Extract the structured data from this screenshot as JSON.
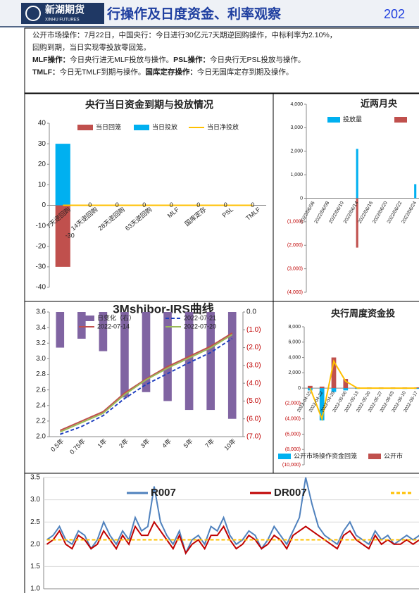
{
  "header": {
    "logo": "新湖期货",
    "logo_en": "XINHU FUTURES",
    "title": "行操作及日度资金、利率观察",
    "date": "202"
  },
  "notes": [
    [
      {
        "text": "公开市场操作：7月22日，中国央行：今日进行30亿元7天期逆回购操作，中标利率为2.10%，"
      }
    ],
    [
      {
        "text": "回购到期，当日实现零投放零回笼。"
      }
    ],
    [
      {
        "text": "MLF操作：",
        "bold": true
      },
      {
        "text": "今日央行进无MLF投放与操作。"
      },
      {
        "text": "PSL操作：",
        "bold": true
      },
      {
        "text": "今日央行无PSL投放与操作。"
      }
    ],
    [
      {
        "text": "TMLF：",
        "bold": true
      },
      {
        "text": "今日无TMLF到期与操作。"
      },
      {
        "text": "国库定存操作：",
        "bold": true
      },
      {
        "text": "今日无国库定存到期及操作。"
      }
    ]
  ],
  "chart_data": [
    {
      "type": "bar",
      "title": "央行当日资金到期与投放情况",
      "categories": [
        "7天逆回购",
        "14天逆回购",
        "28天逆回购",
        "63天逆回购",
        "MLF",
        "国库定存",
        "PSL",
        "TMLF"
      ],
      "series": [
        {
          "name": "当日回笼",
          "color": "#c0504d",
          "kind": "bar",
          "values": [
            -30,
            0,
            0,
            0,
            0,
            0,
            0,
            0
          ],
          "data_labels": true
        },
        {
          "name": "当日投放",
          "color": "#00b0f0",
          "kind": "bar",
          "values": [
            30,
            0,
            0,
            0,
            0,
            0,
            0,
            0
          ]
        },
        {
          "name": "当日净投放",
          "color": "#ffc000",
          "kind": "line",
          "values": [
            0,
            0,
            0,
            0,
            0,
            0,
            0,
            0
          ]
        }
      ],
      "ylim": [
        -40,
        40
      ],
      "yticks": [
        -40,
        -30,
        -20,
        -10,
        0,
        10,
        20,
        30,
        40
      ]
    },
    {
      "type": "bar",
      "title": "近两月央",
      "categories": [
        "2022/06/06",
        "2022/06/08",
        "2022/06/10",
        "2022/06/14",
        "2022/06/16",
        "2022/06/20",
        "2022/06/22",
        "2022/06/24"
      ],
      "series": [
        {
          "name": "投放量",
          "color": "#00b0f0",
          "kind": "bar",
          "values": [
            0,
            0,
            0,
            2100,
            0,
            0,
            0,
            600
          ]
        },
        {
          "color": "#c0504d",
          "kind": "bar",
          "values": [
            0,
            0,
            0,
            -2100,
            0,
            0,
            0,
            0
          ]
        }
      ],
      "ylim": [
        -4000,
        4000
      ],
      "yticks": [
        {
          "value": -4000,
          "label": "(4,000)"
        },
        {
          "value": -3000,
          "label": "(3,000)"
        },
        {
          "value": -2000,
          "label": "(2,000)"
        },
        {
          "value": -1000,
          "label": "(1,000)"
        },
        0,
        {
          "value": 1000,
          "label": "1,000"
        },
        {
          "value": 2000,
          "label": "2,000"
        },
        {
          "value": 3000,
          "label": "3,000"
        },
        {
          "value": 4000,
          "label": "4,000"
        }
      ],
      "negative_tick_color": "#c00000"
    },
    {
      "type": "bar",
      "title": "3Mshibor-IRS曲线",
      "categories": [
        "0.5年",
        "0.75年",
        "1年",
        "2年",
        "3年",
        "4年",
        "5年",
        "7年",
        "10年"
      ],
      "series": [
        {
          "name": "日变化（右）",
          "color": "#8064a2",
          "kind": "bar",
          "axis": "y2",
          "values": [
            -2.0,
            -1.5,
            -2.2,
            -4.8,
            -4.5,
            -5.0,
            -5.5,
            -5.5,
            -6.0
          ]
        },
        {
          "name": "2022-07-21",
          "color": "#1f3fbf",
          "kind": "line",
          "dash": true,
          "values": [
            2.03,
            2.13,
            2.27,
            2.49,
            2.67,
            2.81,
            2.95,
            3.08,
            3.26
          ]
        },
        {
          "name": "2022-07-14",
          "color": "#c0504d",
          "kind": "line",
          "values": [
            2.08,
            2.2,
            2.32,
            2.56,
            2.74,
            2.9,
            3.03,
            3.16,
            3.33
          ]
        },
        {
          "name": "2022-07-20",
          "color": "#9bbb59",
          "kind": "line",
          "values": [
            2.06,
            2.18,
            2.3,
            2.54,
            2.73,
            2.88,
            3.01,
            3.14,
            3.31
          ]
        }
      ],
      "ylim": [
        2.0,
        3.6
      ],
      "yticks": [
        {
          "value": 2.0,
          "label": "2.0"
        },
        2.2,
        2.4,
        2.6,
        2.8,
        {
          "value": 3.0,
          "label": "3.0"
        },
        3.2,
        3.4,
        3.6
      ],
      "y2lim": [
        -7,
        0
      ],
      "y2ticks": [
        {
          "value": -7,
          "label": "(7.0)"
        },
        {
          "value": -6,
          "label": "(6.0)"
        },
        {
          "value": -5,
          "label": "(5.0)"
        },
        {
          "value": -4,
          "label": "(4.0)"
        },
        {
          "value": -3,
          "label": "(3.0)"
        },
        {
          "value": -2,
          "label": "(2.0)"
        },
        {
          "value": -1,
          "label": "(1.0)"
        },
        {
          "value": 0,
          "label": "0.0"
        }
      ],
      "negative_tick_color": "#c00000"
    },
    {
      "type": "bar",
      "title": "央行周度资金投",
      "categories": [
        "2022-04-15",
        "2022-04-22",
        "2022-04-29",
        "2022-05-06",
        "2022-05-13",
        "2022-05-20",
        "2022-05-27",
        "2022-06-03",
        "2022-06-10",
        "2022-06-17"
      ],
      "series": [
        {
          "name": "公开市场操作资金回笼",
          "color": "#00b0f0",
          "kind": "bar",
          "values": [
            -300,
            -4200,
            -500,
            -300,
            -100,
            -100,
            -100,
            -100,
            -100,
            -100
          ]
        },
        {
          "name": "公开市",
          "color": "#c0504d",
          "kind": "bar",
          "values": [
            300,
            200,
            4000,
            1200,
            100,
            100,
            100,
            100,
            100,
            100
          ]
        },
        {
          "color": "#ffc000",
          "kind": "line",
          "values": [
            0,
            -4000,
            3500,
            900,
            0,
            0,
            0,
            0,
            0,
            0
          ]
        }
      ],
      "ylim": [
        -10000,
        8000
      ],
      "yticks": [
        {
          "value": -10000,
          "label": "(10,000)"
        },
        {
          "value": -8000,
          "label": "(8,000)"
        },
        {
          "value": -6000,
          "label": "(6,000)"
        },
        {
          "value": -4000,
          "label": "(4,000)"
        },
        {
          "value": -2000,
          "label": "(2,000)"
        },
        0,
        {
          "value": 2000,
          "label": "2,000"
        },
        {
          "value": 4000,
          "label": "4,000"
        },
        {
          "value": 6000,
          "label": "6,000"
        },
        {
          "value": 8000,
          "label": "8,000"
        }
      ],
      "negative_tick_color": "#c00000"
    },
    {
      "type": "line",
      "series": [
        {
          "name": "R007",
          "color": "#4f81bd",
          "kind": "line",
          "values": [
            2.1,
            2.2,
            2.4,
            2.1,
            2.0,
            2.3,
            2.2,
            1.9,
            2.1,
            2.5,
            2.2,
            2.0,
            2.3,
            2.1,
            2.6,
            2.3,
            2.4,
            3.3,
            2.5,
            2.2,
            2.0,
            2.3,
            1.8,
            2.1,
            2.2,
            2.0,
            2.4,
            2.3,
            2.6,
            2.2,
            2.0,
            2.1,
            2.3,
            2.2,
            1.9,
            2.1,
            2.4,
            2.2,
            2.0,
            2.3,
            2.6,
            3.5,
            2.9,
            2.4,
            2.2,
            2.1,
            2.0,
            2.3,
            2.5,
            2.2,
            2.1,
            2.0,
            2.3,
            2.1,
            2.2,
            2.0,
            2.1,
            2.2,
            2.1,
            2.2
          ]
        },
        {
          "name": "DR007",
          "color": "#c00000",
          "kind": "line",
          "values": [
            2.0,
            2.1,
            2.3,
            2.0,
            1.9,
            2.2,
            2.1,
            1.9,
            2.0,
            2.3,
            2.1,
            1.9,
            2.2,
            2.0,
            2.4,
            2.2,
            2.2,
            2.5,
            2.3,
            2.1,
            1.9,
            2.2,
            1.8,
            2.0,
            2.1,
            1.9,
            2.2,
            2.2,
            2.4,
            2.1,
            1.9,
            2.0,
            2.2,
            2.1,
            1.9,
            2.0,
            2.2,
            2.1,
            1.9,
            2.2,
            2.3,
            2.4,
            2.3,
            2.2,
            2.1,
            2.0,
            1.9,
            2.2,
            2.3,
            2.1,
            2.0,
            1.9,
            2.2,
            2.0,
            2.1,
            2.0,
            2.0,
            2.1,
            2.0,
            2.1
          ]
        },
        {
          "color": "#ffc000",
          "kind": "line",
          "dash": true,
          "values": [
            2.1,
            2.1,
            2.1,
            2.1,
            2.1,
            2.1,
            2.1,
            2.1,
            2.1,
            2.1,
            2.1,
            2.1,
            2.1,
            2.1,
            2.1,
            2.1,
            2.1,
            2.1,
            2.1,
            2.1,
            2.1,
            2.1,
            2.1,
            2.1,
            2.1,
            2.1,
            2.1,
            2.1,
            2.1,
            2.1,
            2.1,
            2.1,
            2.1,
            2.1,
            2.1,
            2.1,
            2.1,
            2.1,
            2.1,
            2.1,
            2.1,
            2.1,
            2.1,
            2.1,
            2.1,
            2.1,
            2.1,
            2.1,
            2.1,
            2.1,
            2.1,
            2.1,
            2.1,
            2.1,
            2.1,
            2.1,
            2.1,
            2.1,
            2.1,
            2.1
          ]
        }
      ],
      "ylim": [
        1.0,
        3.5
      ],
      "yticks": [
        {
          "value": 1.0,
          "label": "1.0"
        },
        1.5,
        {
          "value": 2.0,
          "label": "2.0"
        },
        2.5,
        {
          "value": 3.0,
          "label": "3.0"
        },
        3.5
      ],
      "grid": true
    }
  ]
}
